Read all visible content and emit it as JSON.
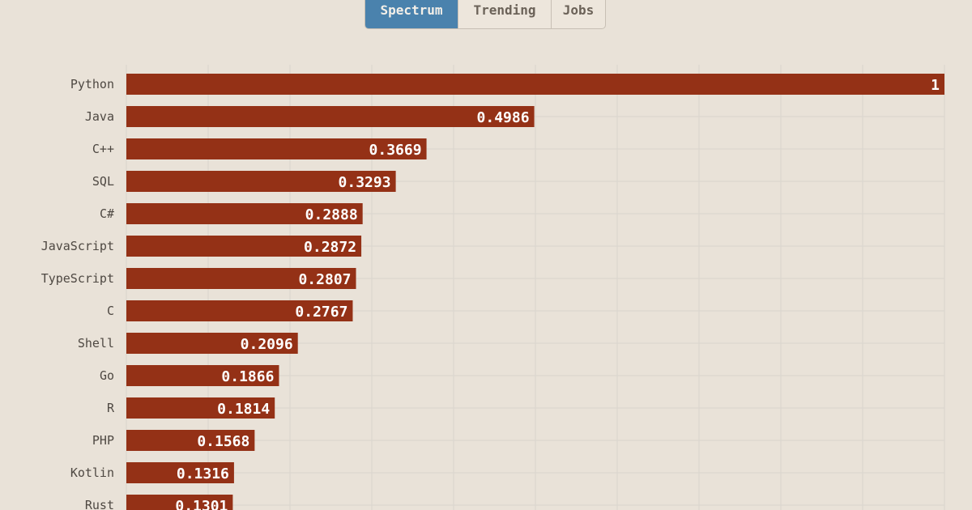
{
  "tabs": [
    {
      "label": "Spectrum",
      "active": true
    },
    {
      "label": "Trending",
      "active": false
    },
    {
      "label": "Jobs",
      "active": false
    }
  ],
  "colors": {
    "background": "#e9e2d8",
    "bar": "#943116",
    "active_tab": "#4a82ad",
    "grid": "#d9d4cd"
  },
  "chart_data": {
    "type": "bar",
    "orientation": "horizontal",
    "categories": [
      "Python",
      "Java",
      "C++",
      "SQL",
      "C#",
      "JavaScript",
      "TypeScript",
      "C",
      "Shell",
      "Go",
      "R",
      "PHP",
      "Kotlin",
      "Rust"
    ],
    "values": [
      1,
      0.4986,
      0.3669,
      0.3293,
      0.2888,
      0.2872,
      0.2807,
      0.2767,
      0.2096,
      0.1866,
      0.1814,
      0.1568,
      0.1316,
      0.1301
    ],
    "value_labels": [
      "1",
      "0.4986",
      "0.3669",
      "0.3293",
      "0.2888",
      "0.2872",
      "0.2807",
      "0.2767",
      "0.2096",
      "0.1866",
      "0.1814",
      "0.1568",
      "0.1316",
      "0.1301"
    ],
    "xlim": [
      0,
      1
    ],
    "grid": true,
    "title": "",
    "xlabel": "",
    "ylabel": ""
  }
}
